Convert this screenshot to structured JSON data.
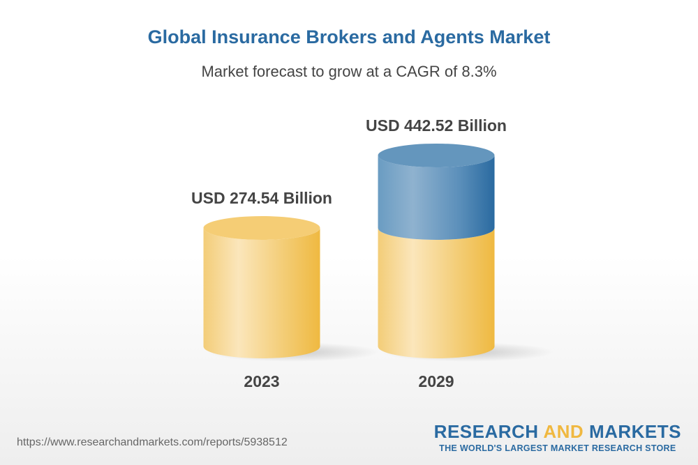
{
  "title": "Global Insurance Brokers and Agents Market",
  "subtitle": "Market forecast to grow at a CAGR of 8.3%",
  "chart_data": {
    "type": "bar",
    "style": "3d-cylinder",
    "categories": [
      "2023",
      "2029"
    ],
    "values": [
      274.54,
      442.52
    ],
    "data_labels": [
      "USD 274.54 Billion",
      "USD 442.52 Billion"
    ],
    "unit": "USD Billion",
    "colors": {
      "base": "#f2c35a",
      "growth": "#4a84b4"
    },
    "grid": false
  },
  "footer": {
    "url": "https://www.researchandmarkets.com/reports/5938512",
    "logo": {
      "word1": "RESEARCH",
      "word2": "AND",
      "word3": "MARKETS",
      "tagline": "THE WORLD'S LARGEST MARKET RESEARCH STORE"
    }
  }
}
